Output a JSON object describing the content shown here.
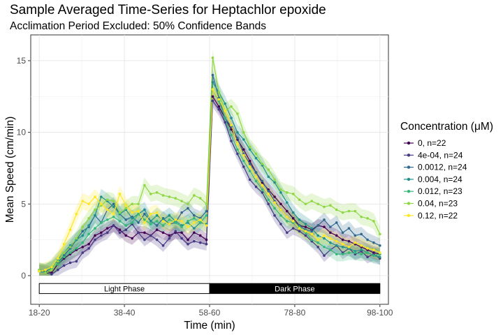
{
  "chart_data": {
    "type": "line",
    "title": "Sample Averaged Time-Series for Heptachlor epoxide",
    "subtitle": "Acclimation Period Excluded: 50% Confidence Bands",
    "xlabel": "Time (min)",
    "ylabel": "Mean Speed (cm/min)",
    "x_ticks": [
      "18-20",
      "38-40",
      "58-60",
      "78-80",
      "98-100"
    ],
    "x_tick_positions": [
      19,
      39,
      59,
      79,
      99
    ],
    "y_ticks": [
      0,
      5,
      10,
      15
    ],
    "xlim": [
      17,
      101
    ],
    "ylim": [
      -2.0,
      16.8
    ],
    "grid": true,
    "legend": {
      "title": "Concentration (μM)",
      "position": "right"
    },
    "phases": [
      {
        "label": "Light Phase",
        "start": 19,
        "end": 59,
        "fill": "#ffffff",
        "text_color": "#000000"
      },
      {
        "label": "Dark Phase",
        "start": 59,
        "end": 99,
        "fill": "#000000",
        "text_color": "#ffffff"
      }
    ],
    "phase_bar_y": [
      -0.55,
      -1.25
    ],
    "series": [
      {
        "name": "0, n=22",
        "color": "#440154",
        "band": 0.45,
        "values": [
          0.3,
          0.3,
          0.2,
          0.8,
          1.2,
          1.5,
          1.8,
          2.0,
          2.2,
          2.8,
          3.0,
          3.3,
          3.5,
          3.2,
          2.8,
          2.6,
          3.0,
          3.0,
          2.8,
          3.2,
          3.0,
          2.8,
          3.0,
          3.0,
          2.5,
          3.0,
          2.8,
          2.5,
          12.5,
          11.8,
          11.0,
          10.2,
          9.5,
          8.8,
          8.0,
          7.2,
          6.5,
          6.0,
          5.5,
          5.0,
          4.5,
          4.0,
          3.5,
          3.4,
          3.2,
          3.5,
          3.4,
          3.0,
          2.8,
          2.5,
          2.4,
          2.2,
          2.0,
          1.8,
          1.6,
          1.5
        ]
      },
      {
        "name": "4e-04, n=24",
        "color": "#443983",
        "band": 0.45,
        "values": [
          0.3,
          0.2,
          0.1,
          0.4,
          0.7,
          0.9,
          1.0,
          1.6,
          1.9,
          2.5,
          2.8,
          3.0,
          3.5,
          3.0,
          3.2,
          3.6,
          3.0,
          2.5,
          2.8,
          2.5,
          2.1,
          2.6,
          3.1,
          2.6,
          2.2,
          2.4,
          2.3,
          2.2,
          12.2,
          11.6,
          10.7,
          9.4,
          8.5,
          7.6,
          6.7,
          6.2,
          5.8,
          5.0,
          4.2,
          3.6,
          3.0,
          3.3,
          3.1,
          2.8,
          2.4,
          2.0,
          1.4,
          1.8,
          2.1,
          1.6,
          1.9,
          1.5,
          1.7,
          1.3,
          1.5,
          1.2
        ]
      },
      {
        "name": "0.0012, n=24",
        "color": "#31688e",
        "band": 0.5,
        "values": [
          0.4,
          0.3,
          0.5,
          0.9,
          1.4,
          1.9,
          2.5,
          3.1,
          3.4,
          4.2,
          3.7,
          4.6,
          5.0,
          4.3,
          3.9,
          4.1,
          3.7,
          4.3,
          3.8,
          3.5,
          4.0,
          3.6,
          3.7,
          4.4,
          4.7,
          4.2,
          4.0,
          4.5,
          14.0,
          12.4,
          11.0,
          10.4,
          9.6,
          8.5,
          7.8,
          7.2,
          6.6,
          5.9,
          5.2,
          4.6,
          4.1,
          3.8,
          3.5,
          3.2,
          3.1,
          3.5,
          3.9,
          3.4,
          3.7,
          3.0,
          3.3,
          2.8,
          2.9,
          2.5,
          2.3,
          2.1
        ]
      },
      {
        "name": "0.004, n=24",
        "color": "#21908d",
        "band": 0.55,
        "values": [
          0.3,
          0.2,
          0.6,
          1.1,
          1.6,
          2.1,
          2.5,
          2.8,
          3.5,
          4.2,
          5.5,
          5.2,
          4.8,
          4.3,
          4.6,
          4.0,
          4.3,
          4.6,
          3.8,
          4.2,
          3.9,
          4.2,
          3.8,
          3.5,
          3.7,
          3.3,
          3.7,
          3.6,
          13.5,
          12.8,
          12.0,
          11.0,
          10.0,
          9.5,
          8.8,
          8.2,
          7.7,
          6.9,
          6.5,
          5.8,
          5.1,
          4.4,
          3.9,
          3.6,
          3.3,
          2.8,
          2.6,
          2.3,
          2.1,
          2.0,
          1.9,
          1.7,
          1.8,
          1.6,
          1.4,
          1.3
        ]
      },
      {
        "name": "0.012, n=23",
        "color": "#35b779",
        "band": 0.5,
        "values": [
          0.3,
          0.4,
          0.5,
          0.8,
          1.3,
          1.6,
          1.9,
          2.3,
          2.9,
          3.3,
          3.7,
          3.9,
          4.1,
          3.8,
          3.5,
          3.7,
          4.3,
          3.9,
          3.6,
          3.8,
          3.5,
          3.9,
          3.7,
          3.4,
          3.8,
          4.0,
          3.7,
          4.2,
          13.0,
          12.2,
          11.0,
          9.8,
          8.8,
          8.0,
          7.3,
          6.6,
          6.0,
          5.3,
          4.7,
          4.2,
          3.8,
          3.7,
          3.4,
          3.0,
          2.5,
          2.3,
          2.0,
          1.8,
          1.5,
          1.5,
          1.6,
          1.6,
          1.5,
          1.6,
          1.4,
          1.5
        ]
      },
      {
        "name": "0.04, n=23",
        "color": "#8fd744",
        "band": 0.55,
        "values": [
          0.4,
          0.2,
          0.4,
          1.0,
          1.6,
          2.0,
          2.6,
          3.4,
          4.0,
          4.6,
          4.9,
          5.3,
          5.2,
          4.4,
          4.7,
          5.0,
          5.0,
          6.3,
          5.7,
          5.8,
          5.6,
          5.5,
          5.4,
          5.2,
          5.0,
          5.6,
          5.4,
          5.0,
          15.2,
          12.8,
          11.5,
          11.8,
          11.3,
          10.0,
          9.0,
          8.5,
          7.8,
          7.4,
          6.7,
          6.0,
          5.8,
          5.7,
          5.3,
          5.0,
          5.2,
          5.0,
          4.8,
          4.9,
          4.6,
          4.4,
          4.5,
          4.5,
          4.1,
          4.0,
          3.8,
          2.9
        ]
      },
      {
        "name": "0.12, n=22",
        "color": "#fde725",
        "band": 0.55,
        "values": [
          0.3,
          0.4,
          0.6,
          1.2,
          2.2,
          3.2,
          4.3,
          5.2,
          5.0,
          5.5,
          5.0,
          4.6,
          4.3,
          5.7,
          4.9,
          4.4,
          4.5,
          3.7,
          4.3,
          4.4,
          3.8,
          3.6,
          3.9,
          3.8,
          3.4,
          3.7,
          3.9,
          3.5,
          13.0,
          12.3,
          11.5,
          10.5,
          9.2,
          8.4,
          7.6,
          6.9,
          6.3,
          5.7,
          5.1,
          4.6,
          4.1,
          3.8,
          3.3,
          3.1,
          2.9,
          2.5,
          2.8,
          2.6,
          2.4,
          2.2,
          2.0,
          2.3,
          2.1,
          1.9,
          1.8,
          1.6
        ]
      }
    ]
  }
}
